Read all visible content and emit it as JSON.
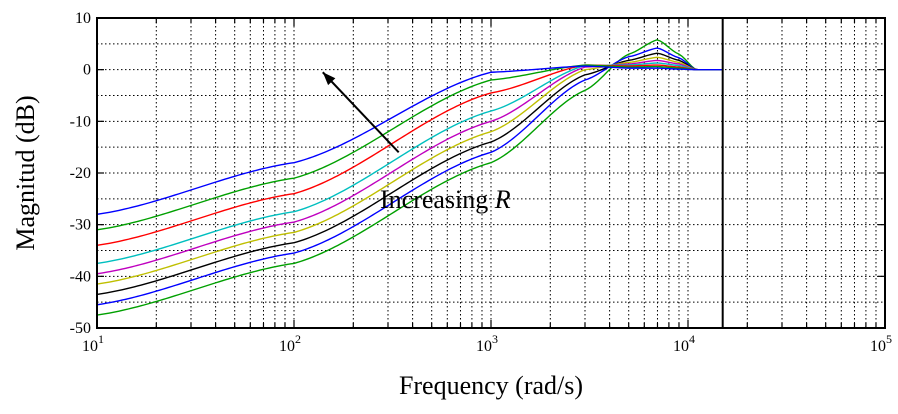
{
  "chart_data": {
    "type": "line",
    "title": "",
    "xlabel": "Frequency (rad/s)",
    "ylabel": "Magnitud (dB)",
    "xscale": "log",
    "xlim": [
      10,
      100000
    ],
    "ylim": [
      -50,
      10
    ],
    "grid": true,
    "x_tick_labels": [
      {
        "value": 10,
        "base": "10",
        "exp": "1"
      },
      {
        "value": 100,
        "base": "10",
        "exp": "2"
      },
      {
        "value": 1000,
        "base": "10",
        "exp": "3"
      },
      {
        "value": 10000,
        "base": "10",
        "exp": "4"
      },
      {
        "value": 100000,
        "base": "10",
        "exp": "5"
      }
    ],
    "y_ticks": [
      10,
      0,
      -10,
      -20,
      -30,
      -40,
      -50
    ],
    "y_tick_labels": [
      "10",
      "0",
      "-10",
      "-20",
      "-30",
      "-40",
      "-50"
    ],
    "vertical_line_x": 15000,
    "annotation": {
      "text": "Increasing ",
      "var": "R",
      "arrow_from": [
        340,
        -16
      ],
      "arrow_to": [
        140,
        -0.5
      ]
    },
    "series": [
      {
        "color": "#00a000",
        "points": [
          [
            10,
            -47.5
          ],
          [
            100,
            -37.5
          ],
          [
            1000,
            -18
          ],
          [
            3000,
            -4
          ],
          [
            5000,
            3
          ],
          [
            7000,
            5.8
          ],
          [
            9000,
            3
          ],
          [
            11000,
            0
          ],
          [
            15000,
            0
          ]
        ]
      },
      {
        "color": "#0000ff",
        "points": [
          [
            10,
            -45.5
          ],
          [
            100,
            -35.5
          ],
          [
            1000,
            -16
          ],
          [
            3000,
            -2
          ],
          [
            5000,
            2.5
          ],
          [
            7000,
            4.2
          ],
          [
            9000,
            2.3
          ],
          [
            11000,
            0
          ],
          [
            15000,
            0
          ]
        ]
      },
      {
        "color": "#000000",
        "points": [
          [
            10,
            -43.5
          ],
          [
            100,
            -33.5
          ],
          [
            1000,
            -14
          ],
          [
            3000,
            -1
          ],
          [
            5000,
            1.8
          ],
          [
            7000,
            3.2
          ],
          [
            9000,
            1.8
          ],
          [
            11000,
            0
          ],
          [
            15000,
            0
          ]
        ]
      },
      {
        "color": "#bfbf00",
        "points": [
          [
            10,
            -41.5
          ],
          [
            100,
            -31.5
          ],
          [
            1000,
            -12
          ],
          [
            3000,
            0
          ],
          [
            5000,
            1.4
          ],
          [
            7000,
            2.4
          ],
          [
            9000,
            1.4
          ],
          [
            11000,
            0
          ],
          [
            15000,
            0
          ]
        ]
      },
      {
        "color": "#bf00bf",
        "points": [
          [
            10,
            -39.5
          ],
          [
            100,
            -29.5
          ],
          [
            1000,
            -10
          ],
          [
            3000,
            0.5
          ],
          [
            5000,
            1.1
          ],
          [
            7000,
            1.8
          ],
          [
            9000,
            1.1
          ],
          [
            11000,
            0
          ],
          [
            15000,
            0
          ]
        ]
      },
      {
        "color": "#00bfbf",
        "points": [
          [
            10,
            -37.5
          ],
          [
            100,
            -27.5
          ],
          [
            1000,
            -8
          ],
          [
            3000,
            0.8
          ],
          [
            5000,
            0.9
          ],
          [
            7000,
            1.3
          ],
          [
            9000,
            0.8
          ],
          [
            11000,
            0
          ],
          [
            15000,
            0
          ]
        ]
      },
      {
        "color": "#ff0000",
        "points": [
          [
            10,
            -34
          ],
          [
            100,
            -24
          ],
          [
            1000,
            -4.5
          ],
          [
            3000,
            0.9
          ],
          [
            5000,
            0.7
          ],
          [
            7000,
            0.9
          ],
          [
            9000,
            0.5
          ],
          [
            11000,
            0
          ],
          [
            15000,
            0
          ]
        ]
      },
      {
        "color": "#00a000",
        "points": [
          [
            10,
            -31
          ],
          [
            100,
            -21
          ],
          [
            1000,
            -2
          ],
          [
            3000,
            0.9
          ],
          [
            5000,
            0.5
          ],
          [
            7000,
            0.6
          ],
          [
            9000,
            0.3
          ],
          [
            11000,
            0
          ],
          [
            15000,
            0
          ]
        ]
      },
      {
        "color": "#0000ff",
        "points": [
          [
            10,
            -28
          ],
          [
            100,
            -18
          ],
          [
            1000,
            -0.5
          ],
          [
            3000,
            0.7
          ],
          [
            5000,
            0.3
          ],
          [
            7000,
            0.3
          ],
          [
            9000,
            0.1
          ],
          [
            11000,
            0
          ],
          [
            15000,
            0
          ]
        ]
      }
    ]
  }
}
